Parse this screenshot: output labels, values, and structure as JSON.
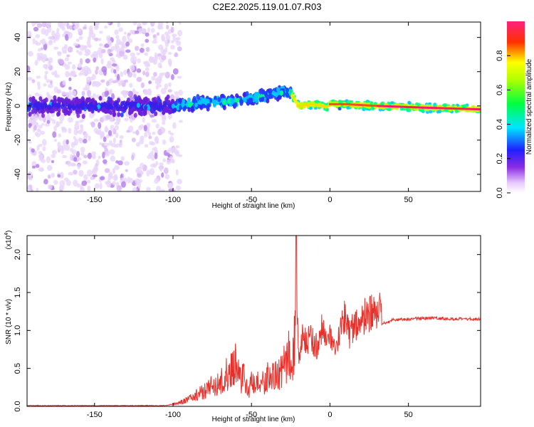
{
  "title": "C2E2.2025.119.01.07.R03",
  "chart_data": [
    {
      "type": "heatmap",
      "xlabel": "Height of straight line (km)",
      "ylabel": "Frequency (Hz)",
      "xlim": [
        -193,
        96
      ],
      "ylim": [
        -50,
        49
      ],
      "xticks": [
        -150,
        -100,
        -50,
        0,
        50
      ],
      "yticks": [
        -40,
        -20,
        0,
        20,
        40
      ],
      "colorbar": {
        "label": "Normalized spectral amplitude",
        "range": [
          0,
          1
        ],
        "ticks": [
          "0.0",
          "0.2",
          "0.4",
          "0.6",
          "0.8"
        ],
        "colormap": "rainbow (white-violet-blue-cyan-green-yellow-red-magenta)"
      },
      "ridge": {
        "description": "center frequency of dominant signal vs height",
        "x": [
          -193,
          -150,
          -110,
          -100,
          -80,
          -60,
          -40,
          -30,
          -25,
          -22,
          -20,
          -10,
          -5,
          -2,
          0,
          10,
          30,
          60,
          96
        ],
        "y": [
          0,
          0,
          0,
          0,
          2,
          3,
          6,
          8,
          8,
          3,
          0,
          1,
          0,
          -1,
          1,
          1,
          0,
          -1,
          -2
        ]
      }
    },
    {
      "type": "line",
      "xlabel": "Height of straight line (km)",
      "ylabel": "SNR (10 * v/v)",
      "yscale_label": "(x10",
      "yscale_exponent": "4",
      "xlim": [
        -193,
        96
      ],
      "ylim": [
        0,
        2.25
      ],
      "xticks": [
        -150,
        -100,
        -50,
        0,
        50
      ],
      "yticks": [
        "0.0",
        "0.5",
        "1.0",
        "1.5",
        "2.0"
      ],
      "line_color": "#e8302a",
      "series": [
        {
          "x": [
            -193,
            -150,
            -120,
            -105,
            -100,
            -95,
            -90,
            -85,
            -80,
            -75,
            -70,
            -65,
            -62,
            -60,
            -57,
            -55,
            -52,
            -50,
            -47,
            -45,
            -42,
            -40,
            -37,
            -35,
            -32,
            -30,
            -28,
            -26,
            -24,
            -22,
            -21.5,
            -21,
            -20,
            -19,
            -18,
            -15,
            -12,
            -10,
            -8,
            -5,
            -3,
            0,
            3,
            5,
            8,
            10,
            12,
            15,
            18,
            20,
            25,
            30,
            32,
            33,
            40,
            50,
            60,
            70,
            80,
            90,
            96
          ],
          "values": [
            0.01,
            0.01,
            0.01,
            0.01,
            0.03,
            0.05,
            0.1,
            0.15,
            0.2,
            0.28,
            0.3,
            0.45,
            0.5,
            0.6,
            0.35,
            0.4,
            0.2,
            0.3,
            0.25,
            0.35,
            0.3,
            0.4,
            0.35,
            0.45,
            0.4,
            0.5,
            0.55,
            0.8,
            0.6,
            0.9,
            2.25,
            1.3,
            0.7,
            0.6,
            0.9,
            0.85,
            0.95,
            0.8,
            0.8,
            1.05,
            0.9,
            0.9,
            0.7,
            0.85,
            1.1,
            1.3,
            0.95,
            1.05,
            1.1,
            1.15,
            1.2,
            1.22,
            1.25,
            1.08,
            1.14,
            1.15,
            1.16,
            1.16,
            1.15,
            1.15,
            1.15
          ]
        }
      ]
    }
  ]
}
